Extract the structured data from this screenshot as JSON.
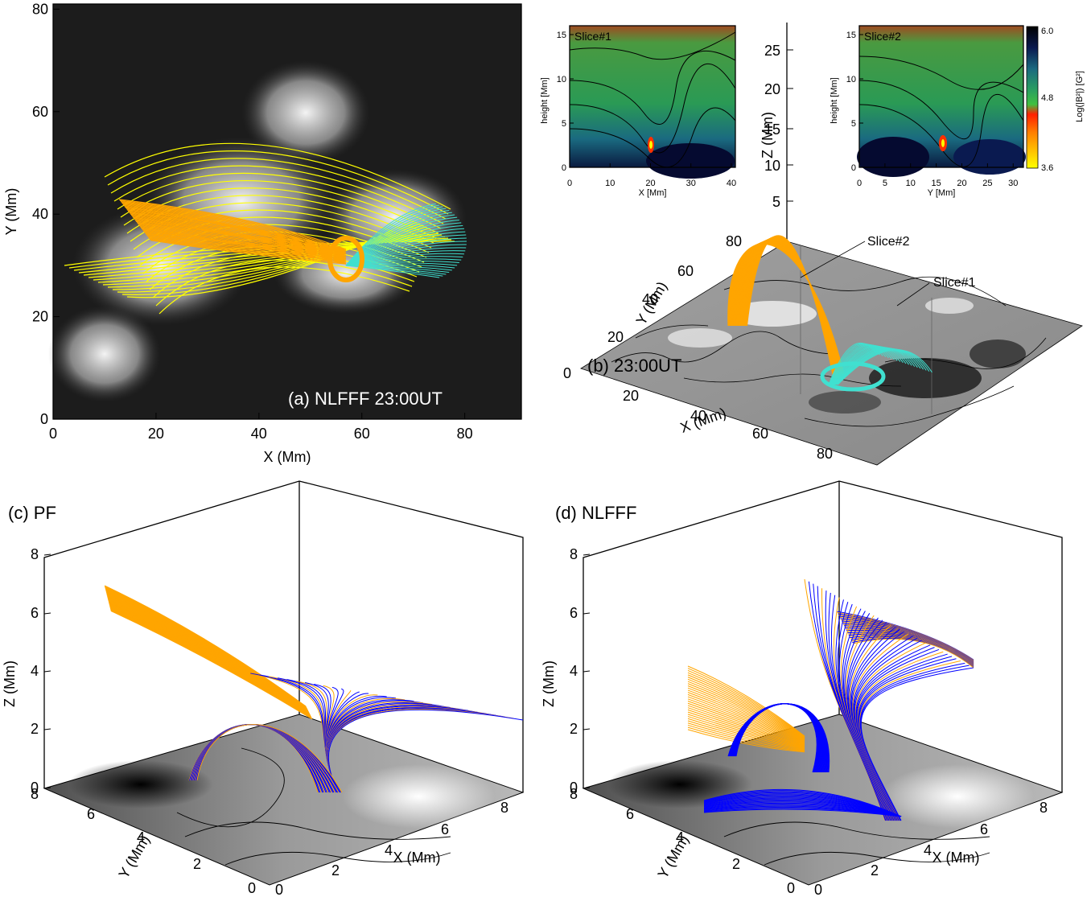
{
  "panel_a": {
    "label": "(a) NLFFF 23:00UT",
    "xlabel": "X (Mm)",
    "ylabel": "Y (Mm)",
    "xticks": [
      "0",
      "20",
      "40",
      "60",
      "80"
    ],
    "yticks": [
      "0",
      "20",
      "40",
      "60",
      "80"
    ]
  },
  "panel_b": {
    "label": "(b) 23:00UT",
    "xlabel": "X (Mm)",
    "ylabel": "Y (Mm)",
    "zlabel": "Z (Mm)",
    "xticks": [
      "20",
      "40",
      "60",
      "80"
    ],
    "yticks": [
      "0",
      "20",
      "40",
      "60",
      "80"
    ],
    "zticks": [
      "5",
      "10",
      "15",
      "20",
      "25"
    ],
    "origin_x": "0",
    "callout_1": "Slice#1",
    "callout_2": "Slice#2",
    "slice1": {
      "title": "Slice#1",
      "xlabel": "X [Mm]",
      "ylabel": "height [Mm]",
      "xticks": [
        "0",
        "10",
        "20",
        "30",
        "40"
      ],
      "yticks": [
        "0",
        "5",
        "10",
        "15"
      ]
    },
    "slice2": {
      "title": "Slice#2",
      "xlabel": "Y [Mm]",
      "ylabel": "height [Mm]",
      "xticks": [
        "0",
        "5",
        "10",
        "15",
        "20",
        "25",
        "30"
      ],
      "yticks": [
        "0",
        "5",
        "10",
        "15"
      ]
    },
    "colorbar": {
      "label": "Log(|B²|) [G²]",
      "ticks": [
        "6.0",
        "4.8",
        "3.6"
      ]
    }
  },
  "panel_c": {
    "label": "(c) PF",
    "xlabel": "X (Mm)",
    "ylabel": "Y (Mm)",
    "zlabel": "Z (Mm)",
    "zticks": [
      "0",
      "2",
      "4",
      "6",
      "8"
    ],
    "yticks": [
      "8",
      "6",
      "4",
      "2",
      "0"
    ],
    "xticks": [
      "0",
      "2",
      "4",
      "6",
      "8"
    ]
  },
  "panel_d": {
    "label": "(d) NLFFF",
    "xlabel": "X (Mm)",
    "ylabel": "Y (Mm)",
    "zlabel": "Z (Mm)",
    "zticks": [
      "0",
      "2",
      "4",
      "6",
      "8"
    ],
    "yticks": [
      "8",
      "6",
      "4",
      "2",
      "0"
    ],
    "xticks": [
      "0",
      "2",
      "4",
      "6",
      "8"
    ]
  },
  "colors": {
    "orange": "#ffa500",
    "yellow": "#ffff00",
    "cyan": "#40e0d0",
    "blue": "#0000ff",
    "green": "#30a030"
  }
}
